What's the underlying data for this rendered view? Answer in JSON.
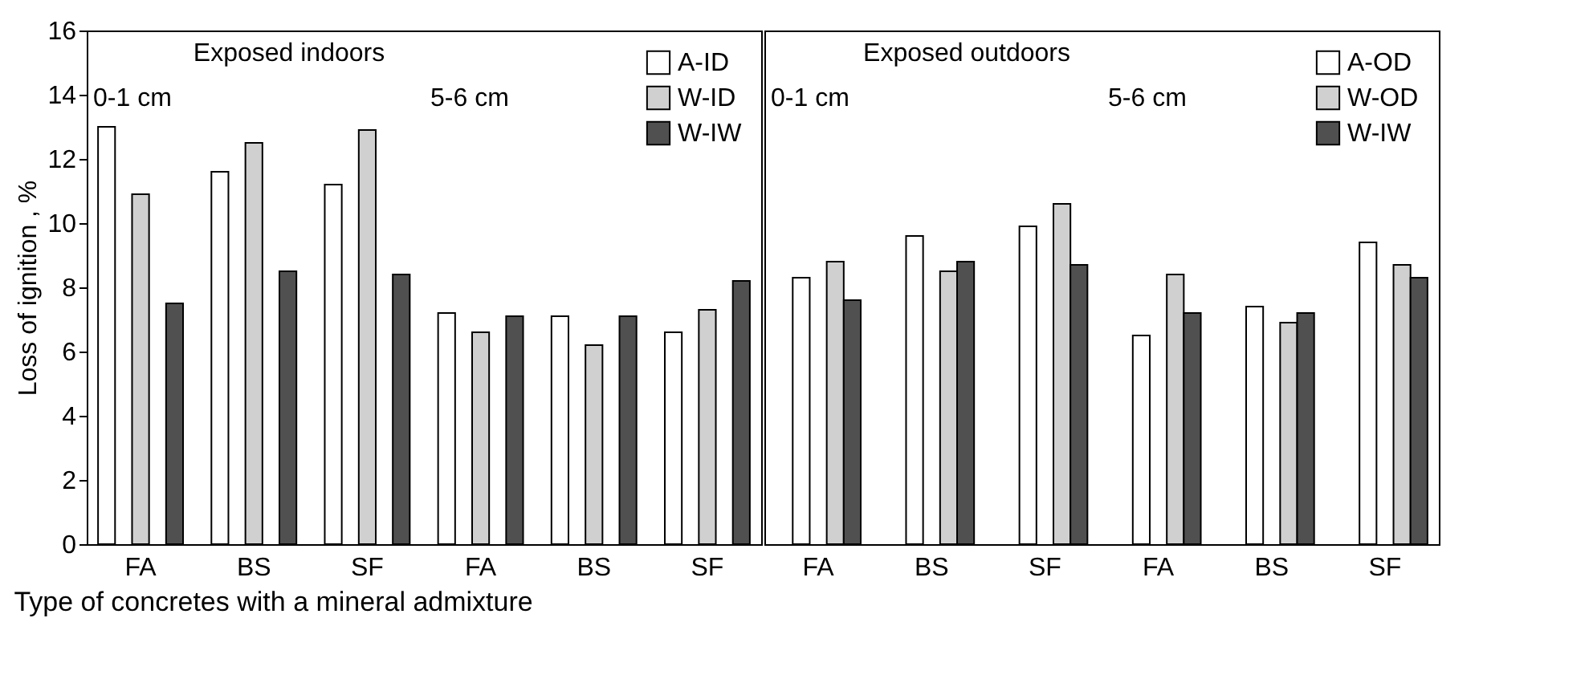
{
  "chart_data": [
    {
      "type": "bar",
      "title": "Exposed indoors",
      "xlabel": "Type of concretes with a mineral admixture",
      "ylabel": "Loss of ignition , %",
      "categories": [
        "FA",
        "BS",
        "SF",
        "FA",
        "BS",
        "SF"
      ],
      "ylim": [
        0,
        16
      ],
      "yticks": [
        0,
        2,
        4,
        6,
        8,
        10,
        12,
        14,
        16
      ],
      "grid": false,
      "legend": "top right",
      "annotations": [
        "0-1 cm",
        "5-6 cm"
      ],
      "series": [
        {
          "name": "A-ID",
          "color": "#ffffff",
          "values": [
            13.0,
            11.6,
            11.2,
            7.2,
            7.1,
            6.6
          ]
        },
        {
          "name": "W-ID",
          "color": "#d0d0d0",
          "values": [
            10.9,
            12.5,
            12.9,
            6.6,
            6.2,
            7.3
          ]
        },
        {
          "name": "W-IW",
          "color": "#505050",
          "values": [
            7.5,
            8.5,
            8.4,
            7.1,
            7.1,
            8.2
          ]
        }
      ]
    },
    {
      "type": "bar",
      "title": "Exposed outdoors",
      "categories": [
        "FA",
        "BS",
        "SF",
        "FA",
        "BS",
        "SF"
      ],
      "ylim": [
        0,
        16
      ],
      "yticks": [
        0,
        2,
        4,
        6,
        8,
        10,
        12,
        14,
        16
      ],
      "grid": false,
      "legend": "top right",
      "tick_labels": "x",
      "annotations": [
        "0-1 cm",
        "5-6 cm"
      ],
      "series": [
        {
          "name": "A-OD",
          "color": "#ffffff",
          "values": [
            8.3,
            9.6,
            9.9,
            6.5,
            7.4,
            9.4
          ]
        },
        {
          "name": "W-OD",
          "color": "#d0d0d0",
          "values": [
            8.8,
            8.5,
            10.6,
            8.4,
            6.9,
            8.7
          ]
        },
        {
          "name": "W-IW",
          "color": "#505050",
          "values": [
            7.6,
            8.8,
            8.7,
            7.2,
            7.2,
            8.3
          ]
        }
      ]
    }
  ]
}
